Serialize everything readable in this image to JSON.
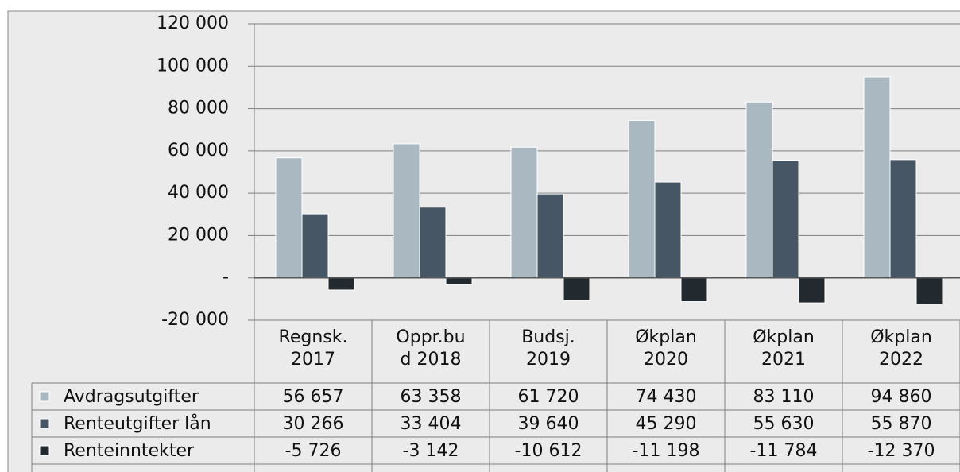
{
  "chart_data": {
    "type": "bar",
    "categories": [
      "Regnsk. 2017",
      "Oppr.bud 2018",
      "Budsj. 2019",
      "Økplan 2020",
      "Økplan 2021",
      "Økplan 2022"
    ],
    "series": [
      {
        "name": "Avdragsutgifter",
        "color": "#aab8c2",
        "values": [
          56657,
          63358,
          61720,
          74430,
          83110,
          94860
        ],
        "value_labels": [
          "56 657",
          "63 358",
          "61 720",
          "74 430",
          "83 110",
          "94 860"
        ]
      },
      {
        "name": "Renteutgifter lån",
        "color": "#465664",
        "values": [
          30266,
          33404,
          39640,
          45290,
          55630,
          55870
        ],
        "value_labels": [
          "30 266",
          "33 404",
          "39 640",
          "45 290",
          "55 630",
          "55 870"
        ]
      },
      {
        "name": "Renteinntekter",
        "color": "#22292f",
        "values": [
          -5726,
          -3142,
          -10612,
          -11198,
          -11784,
          -12370
        ],
        "value_labels": [
          "-5 726",
          "-3 142",
          "-10 612",
          "-11 198",
          "-11 784",
          "-12 370"
        ]
      }
    ],
    "ylim": [
      -20000,
      120000
    ],
    "yticks": [
      {
        "value": -20000,
        "label": "-20 000"
      },
      {
        "value": 0,
        "label": "-"
      },
      {
        "value": 20000,
        "label": "20 000"
      },
      {
        "value": 40000,
        "label": "40 000"
      },
      {
        "value": 60000,
        "label": "60 000"
      },
      {
        "value": 80000,
        "label": "80 000"
      },
      {
        "value": 100000,
        "label": "100 000"
      },
      {
        "value": 120000,
        "label": "120 000"
      }
    ],
    "grid": true
  }
}
